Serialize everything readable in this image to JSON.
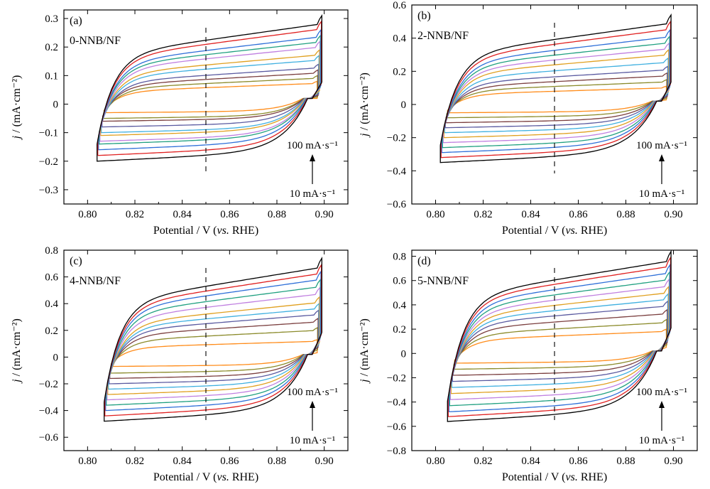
{
  "chart_data": [
    {
      "type": "line",
      "panel_label": "(a)",
      "sample": "0-NNB/NF",
      "xlabel": "Potential / V (vs. RHE)",
      "ylabel": "j / (mA·cm⁻²)",
      "xlim": [
        0.79,
        0.91
      ],
      "ylim": [
        -0.35,
        0.33
      ],
      "xticks": [
        "0.80",
        "0.82",
        "0.84",
        "0.86",
        "0.88",
        "0.90"
      ],
      "yticks": [
        "−0.3",
        "−0.2",
        "−0.1",
        "0",
        "0.1",
        "0.2",
        "0.3"
      ],
      "x_start": 0.804,
      "x_end": 0.899,
      "marker_x": 0.85,
      "rate_high": "100 mA·s⁻¹",
      "rate_low": "10 mA·s⁻¹",
      "series": [
        {
          "color": "#FF8C1A",
          "upper_max": 0.08,
          "lower_max": -0.03
        },
        {
          "color": "#8B8B2B",
          "upper_max": 0.1,
          "lower_max": -0.05
        },
        {
          "color": "#7B3F3F",
          "upper_max": 0.12,
          "lower_max": -0.06
        },
        {
          "color": "#5A5AA0",
          "upper_max": 0.14,
          "lower_max": -0.08
        },
        {
          "color": "#40B0E0",
          "upper_max": 0.17,
          "lower_max": -0.1
        },
        {
          "color": "#E0A020",
          "upper_max": 0.19,
          "lower_max": -0.11
        },
        {
          "color": "#C080E0",
          "upper_max": 0.22,
          "lower_max": -0.13
        },
        {
          "color": "#20A080",
          "upper_max": 0.24,
          "lower_max": -0.14
        },
        {
          "color": "#2E6FD8",
          "upper_max": 0.26,
          "lower_max": -0.16
        },
        {
          "color": "#E02020",
          "upper_max": 0.29,
          "lower_max": -0.18
        },
        {
          "color": "#000000",
          "upper_max": 0.31,
          "lower_max": -0.2
        }
      ]
    },
    {
      "type": "line",
      "panel_label": "(b)",
      "sample": "2-NNB/NF",
      "xlabel": "Potential / V (vs. RHE)",
      "ylabel": "j / (mA·cm⁻²)",
      "xlim": [
        0.79,
        0.91
      ],
      "ylim": [
        -0.6,
        0.6
      ],
      "xticks": [
        "0.80",
        "0.82",
        "0.84",
        "0.86",
        "0.88",
        "0.90"
      ],
      "yticks": [
        "−0.6",
        "−0.4",
        "−0.2",
        "0",
        "0.2",
        "0.4",
        "0.6"
      ],
      "x_start": 0.802,
      "x_end": 0.899,
      "marker_x": 0.85,
      "rate_high": "100 mA·s⁻¹",
      "rate_low": "10 mA·s⁻¹",
      "series": [
        {
          "color": "#FF8C1A",
          "upper_max": 0.11,
          "lower_max": -0.05
        },
        {
          "color": "#8B8B2B",
          "upper_max": 0.15,
          "lower_max": -0.08
        },
        {
          "color": "#7B3F3F",
          "upper_max": 0.19,
          "lower_max": -0.11
        },
        {
          "color": "#5A5AA0",
          "upper_max": 0.23,
          "lower_max": -0.14
        },
        {
          "color": "#40B0E0",
          "upper_max": 0.28,
          "lower_max": -0.17
        },
        {
          "color": "#E0A020",
          "upper_max": 0.33,
          "lower_max": -0.2
        },
        {
          "color": "#C080E0",
          "upper_max": 0.37,
          "lower_max": -0.23
        },
        {
          "color": "#20A080",
          "upper_max": 0.41,
          "lower_max": -0.26
        },
        {
          "color": "#2E6FD8",
          "upper_max": 0.45,
          "lower_max": -0.29
        },
        {
          "color": "#E02020",
          "upper_max": 0.5,
          "lower_max": -0.32
        },
        {
          "color": "#000000",
          "upper_max": 0.54,
          "lower_max": -0.35
        }
      ]
    },
    {
      "type": "line",
      "panel_label": "(c)",
      "sample": "4-NNB/NF",
      "xlabel": "Potential / V (vs. RHE)",
      "ylabel": "j / (mA·cm⁻²)",
      "xlim": [
        0.79,
        0.91
      ],
      "ylim": [
        -0.7,
        0.8
      ],
      "xticks": [
        "0.80",
        "0.82",
        "0.84",
        "0.86",
        "0.88",
        "0.90"
      ],
      "yticks": [
        "−0.6",
        "−0.4",
        "−0.2",
        "0",
        "0.2",
        "0.4",
        "0.6",
        "0.8"
      ],
      "x_start": 0.807,
      "x_end": 0.899,
      "marker_x": 0.85,
      "rate_high": "100 mA·s⁻¹",
      "rate_low": "10 mA·s⁻¹",
      "series": [
        {
          "color": "#FF8C1A",
          "upper_max": 0.13,
          "lower_max": -0.07
        },
        {
          "color": "#8B8B2B",
          "upper_max": 0.22,
          "lower_max": -0.12
        },
        {
          "color": "#7B3F3F",
          "upper_max": 0.29,
          "lower_max": -0.16
        },
        {
          "color": "#5A5AA0",
          "upper_max": 0.35,
          "lower_max": -0.2
        },
        {
          "color": "#40B0E0",
          "upper_max": 0.4,
          "lower_max": -0.24
        },
        {
          "color": "#E0A020",
          "upper_max": 0.45,
          "lower_max": -0.28
        },
        {
          "color": "#C080E0",
          "upper_max": 0.52,
          "lower_max": -0.32
        },
        {
          "color": "#20A080",
          "upper_max": 0.58,
          "lower_max": -0.36
        },
        {
          "color": "#2E6FD8",
          "upper_max": 0.64,
          "lower_max": -0.4
        },
        {
          "color": "#E02020",
          "upper_max": 0.69,
          "lower_max": -0.44
        },
        {
          "color": "#000000",
          "upper_max": 0.74,
          "lower_max": -0.48
        }
      ]
    },
    {
      "type": "line",
      "panel_label": "(d)",
      "sample": "5-NNB/NF",
      "xlabel": "Potential / V (vs. RHE)",
      "ylabel": "j / (mA·cm⁻²)",
      "xlim": [
        0.79,
        0.91
      ],
      "ylim": [
        -0.8,
        0.85
      ],
      "xticks": [
        "0.80",
        "0.82",
        "0.84",
        "0.86",
        "0.88",
        "0.90"
      ],
      "yticks": [
        "−0.8",
        "−0.6",
        "−0.4",
        "−0.2",
        "0",
        "0.2",
        "0.4",
        "0.6",
        "0.8"
      ],
      "x_start": 0.805,
      "x_end": 0.899,
      "marker_x": 0.85,
      "rate_high": "100 mA·s⁻¹",
      "rate_low": "10 mA·s⁻¹",
      "series": [
        {
          "color": "#FF8C1A",
          "upper_max": 0.2,
          "lower_max": -0.08
        },
        {
          "color": "#8B8B2B",
          "upper_max": 0.28,
          "lower_max": -0.13
        },
        {
          "color": "#7B3F3F",
          "upper_max": 0.36,
          "lower_max": -0.18
        },
        {
          "color": "#5A5AA0",
          "upper_max": 0.43,
          "lower_max": -0.23
        },
        {
          "color": "#40B0E0",
          "upper_max": 0.49,
          "lower_max": -0.28
        },
        {
          "color": "#E0A020",
          "upper_max": 0.55,
          "lower_max": -0.33
        },
        {
          "color": "#C080E0",
          "upper_max": 0.61,
          "lower_max": -0.38
        },
        {
          "color": "#20A080",
          "upper_max": 0.67,
          "lower_max": -0.43
        },
        {
          "color": "#2E6FD8",
          "upper_max": 0.73,
          "lower_max": -0.48
        },
        {
          "color": "#E02020",
          "upper_max": 0.79,
          "lower_max": -0.52
        },
        {
          "color": "#000000",
          "upper_max": 0.84,
          "lower_max": -0.56
        }
      ]
    }
  ]
}
